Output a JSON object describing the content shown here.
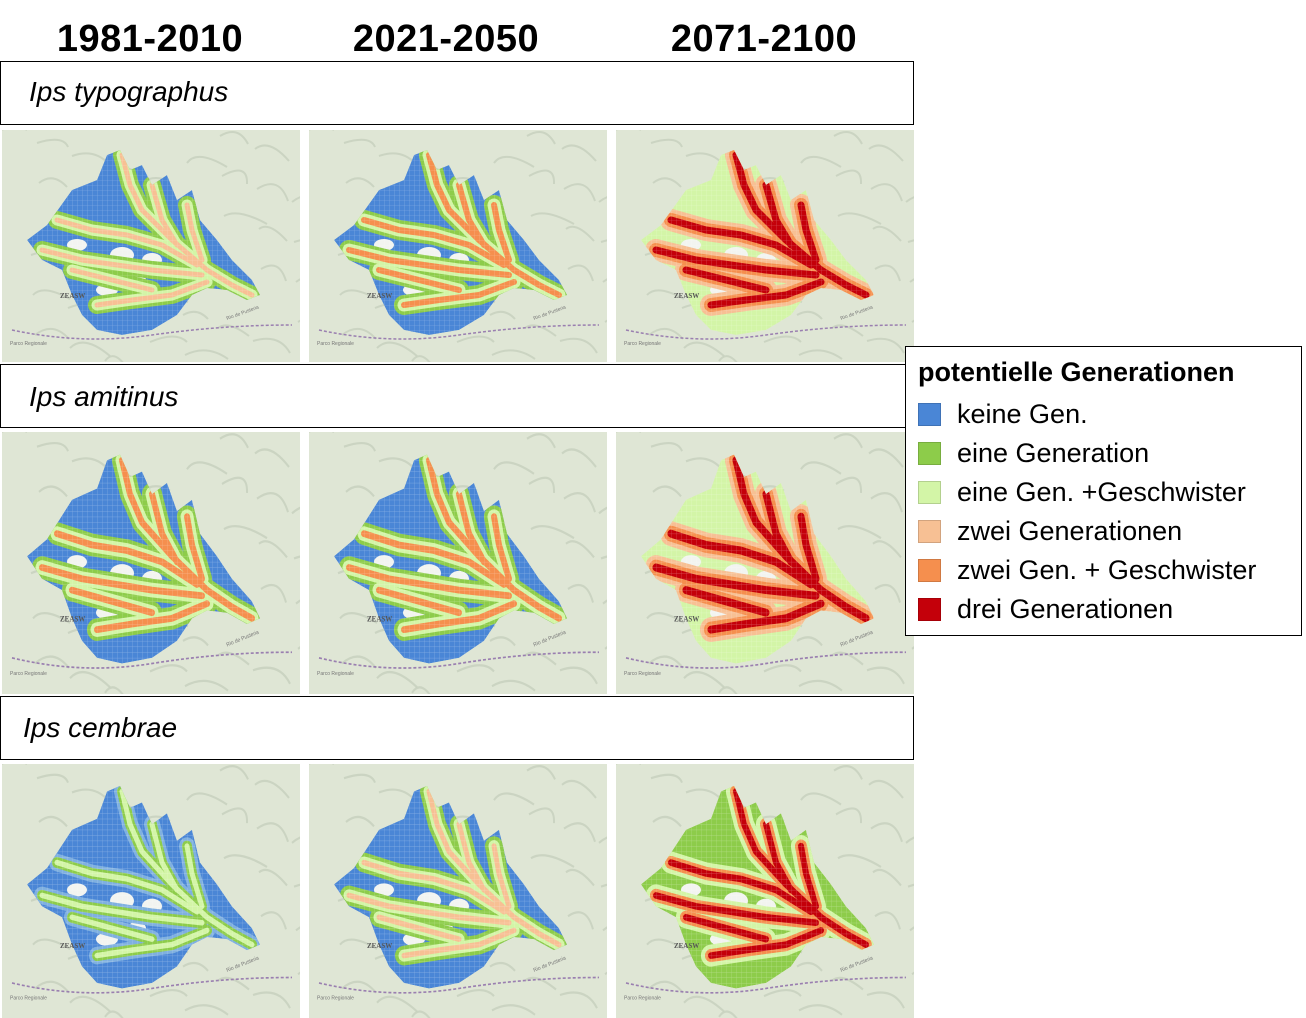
{
  "columns": [
    "1981-2010",
    "2021-2050",
    "2071-2100"
  ],
  "species": [
    {
      "name": "Ips typographus",
      "maps": [
        {
          "period": "1981-2010",
          "palette": "blue_green"
        },
        {
          "period": "2021-2050",
          "palette": "blue_green_yellow"
        },
        {
          "period": "2071-2100",
          "palette": "yellow_orange_red"
        }
      ]
    },
    {
      "name": "Ips amitinus",
      "maps": [
        {
          "period": "1981-2010",
          "palette": "blue_green_yellow"
        },
        {
          "period": "2021-2050",
          "palette": "blue_green_yellow"
        },
        {
          "period": "2071-2100",
          "palette": "yellow_orange_red"
        }
      ]
    },
    {
      "name": "Ips cembrae",
      "maps": [
        {
          "period": "1981-2010",
          "palette": "blue"
        },
        {
          "period": "2021-2050",
          "palette": "blue_green"
        },
        {
          "period": "2071-2100",
          "palette": "green_yellow_red"
        }
      ]
    }
  ],
  "map_labels": {
    "town": "ZEASW",
    "region": "Parco Regionale",
    "river": "Rio de Pusteria"
  },
  "legend": {
    "title": "potentielle  Generationen",
    "items": [
      {
        "label": "keine Gen.",
        "color": "#4a86d6"
      },
      {
        "label": "eine Generation",
        "color": "#8dcc4a"
      },
      {
        "label": "eine Gen. +Geschwister",
        "color": "#d3f5a7"
      },
      {
        "label": "zwei Generationen",
        "color": "#f7c094"
      },
      {
        "label": "zwei Gen. + Geschwister",
        "color": "#f58f4e"
      },
      {
        "label": "drei Generationen",
        "color": "#c4000a"
      }
    ]
  }
}
